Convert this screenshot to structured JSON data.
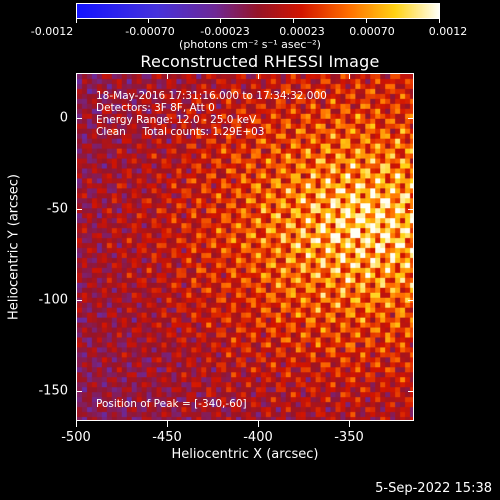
{
  "colorbar": {
    "tick_labels": [
      "-0.0012",
      "-0.00070",
      "-0.00023",
      "0.00023",
      "0.00070",
      "0.0012"
    ],
    "units_label": "(photons cm⁻² s⁻¹ asec⁻²)"
  },
  "plot": {
    "title": "Reconstructed RHESSI Image",
    "info_lines": [
      "18-May-2016 17:31:16.000 to 17:34:32.000",
      "Detectors: 3F 8F, Att 0",
      "Energy Range: 12.0 - 25.0 keV",
      "Clean     Total counts: 1.29E+03"
    ],
    "peak_label": "Position of Peak = [-340,-60]"
  },
  "chart_data": {
    "type": "heatmap",
    "title": "Reconstructed RHESSI Image",
    "xlabel": "Heliocentric X (arcsec)",
    "ylabel": "Heliocentric Y (arcsec)",
    "xlim": [
      -500,
      -315
    ],
    "ylim": [
      -168,
      23
    ],
    "x_ticks": [
      "-500",
      "-450",
      "-400",
      "-350"
    ],
    "x_tick_values": [
      -500,
      -450,
      -400,
      -350
    ],
    "y_ticks": [
      "0",
      "-50",
      "-100",
      "-150"
    ],
    "y_tick_values": [
      0,
      -50,
      -100,
      -150
    ],
    "colorbar_range": [
      -0.0012,
      0.0012
    ],
    "peak_position": [
      -340,
      -60
    ]
  },
  "footer": {
    "date": "5-Sep-2022 15:38"
  }
}
